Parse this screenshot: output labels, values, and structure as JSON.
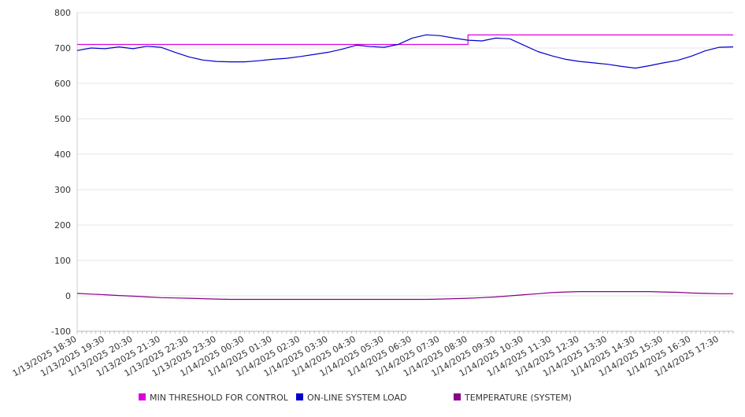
{
  "chart_data": {
    "type": "line",
    "title": "",
    "xlabel": "",
    "ylabel": "",
    "ylim": [
      -100,
      800
    ],
    "yticks": [
      -100,
      0,
      100,
      200,
      300,
      400,
      500,
      600,
      700,
      800
    ],
    "grid": true,
    "legend_position": "bottom",
    "x_tick_labels": [
      "1/13/2025 18:30",
      "1/13/2025 19:30",
      "1/13/2025 20:30",
      "1/13/2025 21:30",
      "1/13/2025 22:30",
      "1/13/2025 23:30",
      "1/14/2025 00:30",
      "1/14/2025 01:30",
      "1/14/2025 02:30",
      "1/14/2025 03:30",
      "1/14/2025 04:30",
      "1/14/2025 05:30",
      "1/14/2025 06:30",
      "1/14/2025 07:30",
      "1/14/2025 08:30",
      "1/14/2025 09:30",
      "1/14/2025 10:30",
      "1/14/2025 11:30",
      "1/14/2025 12:30",
      "1/14/2025 13:30",
      "1/14/2025 14:30",
      "1/14/2025 15:30",
      "1/14/2025 16:30",
      "1/14/2025 17:30"
    ],
    "x": [
      "1/13/2025 18:30",
      "1/13/2025 19:00",
      "1/13/2025 19:30",
      "1/13/2025 20:00",
      "1/13/2025 20:30",
      "1/13/2025 21:00",
      "1/13/2025 21:30",
      "1/13/2025 22:00",
      "1/13/2025 22:30",
      "1/13/2025 23:00",
      "1/13/2025 23:30",
      "1/14/2025 00:00",
      "1/14/2025 00:30",
      "1/14/2025 01:00",
      "1/14/2025 01:30",
      "1/14/2025 02:00",
      "1/14/2025 02:30",
      "1/14/2025 03:00",
      "1/14/2025 03:30",
      "1/14/2025 04:00",
      "1/14/2025 04:30",
      "1/14/2025 05:00",
      "1/14/2025 05:30",
      "1/14/2025 06:00",
      "1/14/2025 06:30",
      "1/14/2025 07:00",
      "1/14/2025 07:30",
      "1/14/2025 08:00",
      "1/14/2025 08:30",
      "1/14/2025 09:00",
      "1/14/2025 09:30",
      "1/14/2025 10:00",
      "1/14/2025 10:30",
      "1/14/2025 11:00",
      "1/14/2025 11:30",
      "1/14/2025 12:00",
      "1/14/2025 12:30",
      "1/14/2025 13:00",
      "1/14/2025 13:30",
      "1/14/2025 14:00",
      "1/14/2025 14:30",
      "1/14/2025 15:00",
      "1/14/2025 15:30",
      "1/14/2025 16:00",
      "1/14/2025 16:30",
      "1/14/2025 17:00",
      "1/14/2025 17:30",
      "1/14/2025 18:00"
    ],
    "series": [
      {
        "name": "MIN THRESHOLD FOR CONTROL",
        "color": "#dd00dd",
        "values": [
          710,
          710,
          710,
          710,
          710,
          710,
          710,
          710,
          710,
          710,
          710,
          710,
          710,
          710,
          710,
          710,
          710,
          710,
          710,
          710,
          710,
          710,
          710,
          710,
          710,
          710,
          710,
          710,
          737,
          737,
          737,
          737,
          737,
          737,
          737,
          737,
          737,
          737,
          737,
          737,
          737,
          737,
          737,
          737,
          737,
          737,
          737,
          737
        ]
      },
      {
        "name": "ON-LINE SYSTEM LOAD",
        "color": "#0000cc",
        "values": [
          693,
          700,
          698,
          703,
          698,
          705,
          702,
          688,
          675,
          666,
          662,
          661,
          661,
          664,
          668,
          671,
          676,
          682,
          688,
          697,
          708,
          704,
          702,
          710,
          728,
          737,
          735,
          728,
          722,
          720,
          728,
          726,
          708,
          690,
          678,
          668,
          662,
          658,
          654,
          648,
          643,
          650,
          658,
          665,
          677,
          692,
          702,
          703
        ]
      },
      {
        "name": "TEMPERATURE (SYSTEM)",
        "color": "#880088",
        "values": [
          7,
          5,
          3,
          1,
          -1,
          -3,
          -5,
          -6,
          -7,
          -8,
          -9,
          -10,
          -10,
          -10,
          -10,
          -10,
          -10,
          -10,
          -10,
          -10,
          -10,
          -10,
          -10,
          -10,
          -10,
          -10,
          -9,
          -8,
          -7,
          -5,
          -3,
          0,
          3,
          6,
          9,
          11,
          12,
          12,
          12,
          12,
          12,
          12,
          11,
          10,
          8,
          7,
          6,
          6
        ]
      }
    ]
  }
}
